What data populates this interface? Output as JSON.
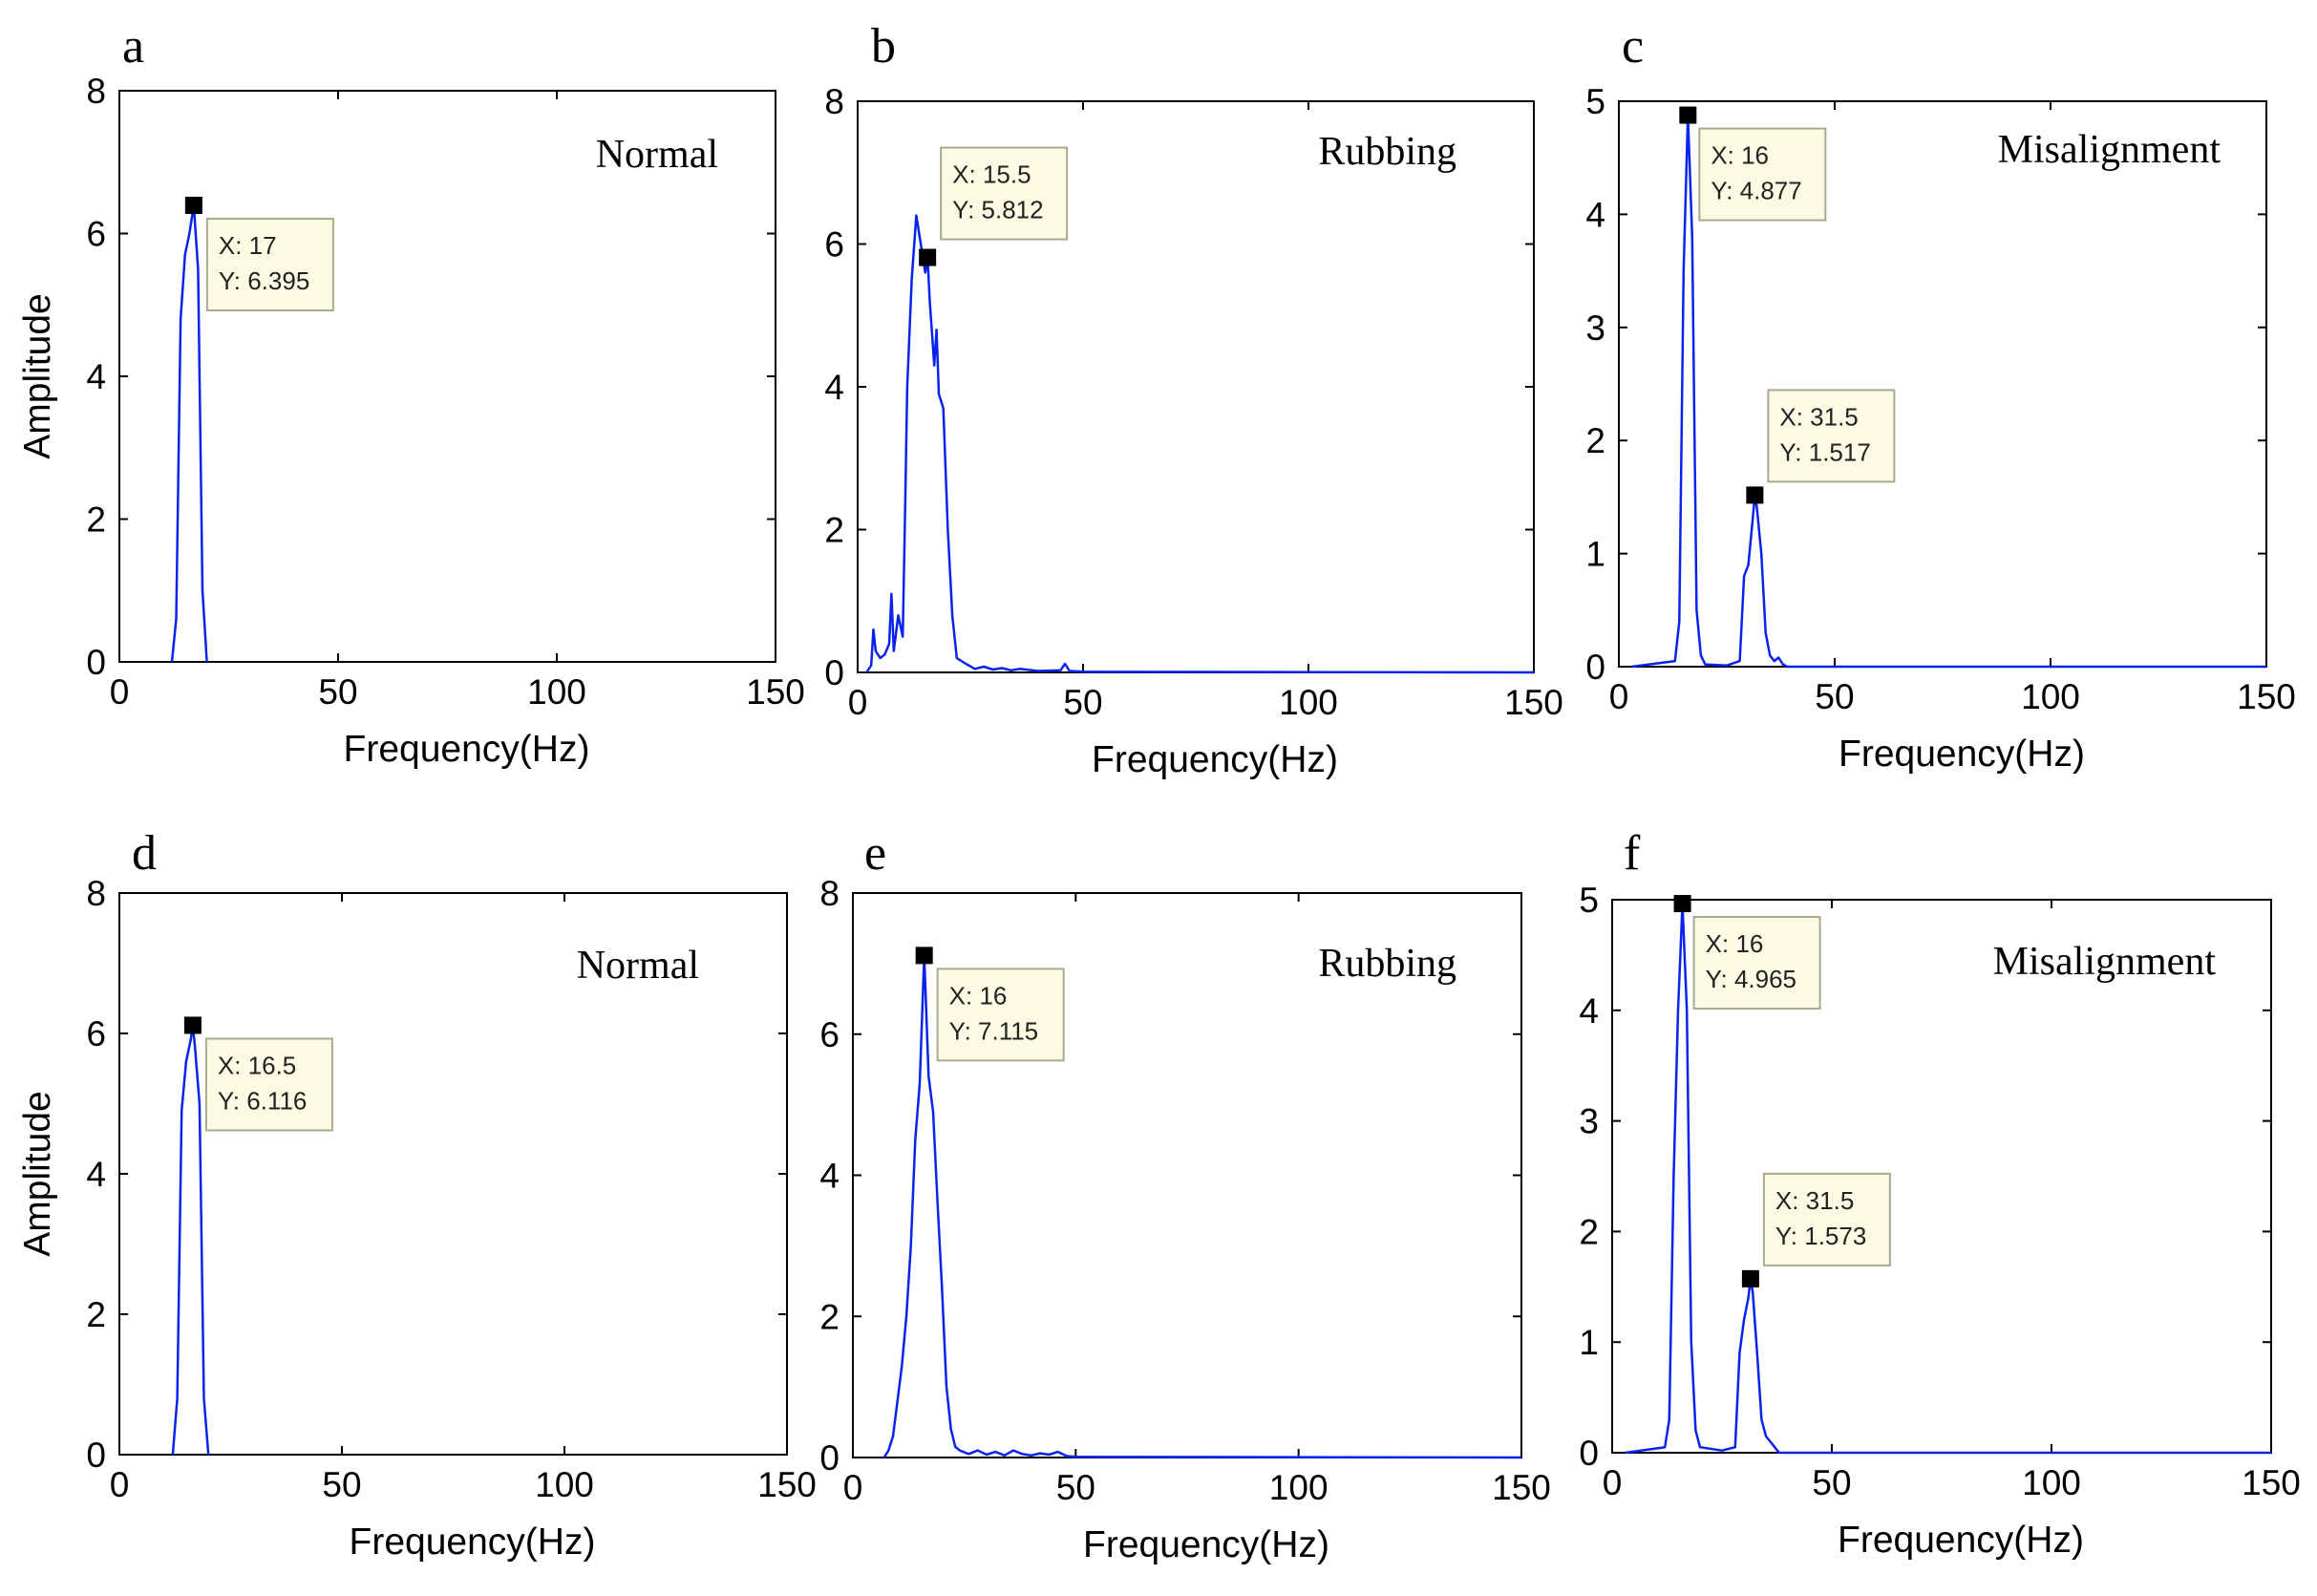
{
  "figure": {
    "xlabel": "Frequency(Hz)",
    "ylabel": "Amplitude"
  },
  "chart_data": [
    {
      "type": "line",
      "panel": "a",
      "label": "Normal",
      "xlabel": "Frequency(Hz)",
      "ylabel": "Amplitude",
      "xlim": [
        0,
        150
      ],
      "ylim": [
        0,
        8
      ],
      "xticks": [
        0,
        50,
        100,
        150
      ],
      "yticks": [
        0,
        2,
        4,
        6,
        8
      ],
      "series": [
        {
          "name": "spectrum",
          "x": [
            12,
            13,
            14,
            15,
            16,
            17,
            18,
            19,
            20
          ],
          "y": [
            0,
            0.6,
            4.8,
            5.7,
            6.0,
            6.395,
            5.5,
            1.0,
            0
          ]
        }
      ],
      "datatips": [
        {
          "x_text": "X: 17",
          "y_text": "Y: 6.395",
          "x": 17,
          "y": 6.395
        }
      ]
    },
    {
      "type": "line",
      "panel": "b",
      "label": "Rubbing",
      "xlabel": "Frequency(Hz)",
      "ylabel": "",
      "xlim": [
        0,
        150
      ],
      "ylim": [
        0,
        8
      ],
      "xticks": [
        0,
        50,
        100,
        150
      ],
      "yticks": [
        0,
        2,
        4,
        6,
        8
      ],
      "series": [
        {
          "name": "spectrum",
          "x": [
            2,
            3,
            3.5,
            4,
            5,
            6,
            7,
            7.5,
            8,
            9,
            10,
            10.5,
            11,
            12,
            13,
            14,
            15,
            15.5,
            16,
            17,
            17.5,
            18,
            19,
            20,
            21,
            22,
            24,
            26,
            28,
            30,
            32,
            34,
            36,
            40,
            45,
            46,
            47,
            50,
            150
          ],
          "y": [
            0,
            0.1,
            0.6,
            0.3,
            0.2,
            0.25,
            0.4,
            1.1,
            0.3,
            0.8,
            0.5,
            2.2,
            4.0,
            5.5,
            6.4,
            6.0,
            5.6,
            5.812,
            5.2,
            4.3,
            4.8,
            3.9,
            3.7,
            2.0,
            0.8,
            0.2,
            0.12,
            0.05,
            0.08,
            0.04,
            0.06,
            0.03,
            0.05,
            0.02,
            0.03,
            0.12,
            0.02,
            0.01,
            0
          ]
        }
      ],
      "datatips": [
        {
          "x_text": "X: 15.5",
          "y_text": "Y: 5.812",
          "x": 15.5,
          "y": 5.812
        }
      ]
    },
    {
      "type": "line",
      "panel": "c",
      "label": "Misalignment",
      "xlabel": "Frequency(Hz)",
      "ylabel": "",
      "xlim": [
        0,
        150
      ],
      "ylim": [
        0,
        5
      ],
      "xticks": [
        0,
        50,
        100,
        150
      ],
      "yticks": [
        0,
        1,
        2,
        3,
        4,
        5
      ],
      "series": [
        {
          "name": "spectrum",
          "x": [
            3,
            13,
            14,
            15,
            16,
            17,
            18,
            19,
            20,
            25,
            28,
            29,
            30,
            31,
            31.5,
            32,
            33,
            34,
            35,
            36,
            37,
            38,
            39,
            150
          ],
          "y": [
            0,
            0.05,
            0.4,
            3.5,
            4.877,
            3.8,
            0.5,
            0.1,
            0.02,
            0.01,
            0.05,
            0.8,
            0.9,
            1.3,
            1.517,
            1.4,
            1.0,
            0.3,
            0.1,
            0.05,
            0.08,
            0.02,
            0.0,
            0
          ]
        }
      ],
      "datatips": [
        {
          "x_text": "X: 16",
          "y_text": "Y: 4.877",
          "x": 16,
          "y": 4.877
        },
        {
          "x_text": "X: 31.5",
          "y_text": "Y: 1.517",
          "x": 31.5,
          "y": 1.517
        }
      ]
    },
    {
      "type": "line",
      "panel": "d",
      "label": "Normal",
      "xlabel": "Frequency(Hz)",
      "ylabel": "Amplitude",
      "xlim": [
        0,
        150
      ],
      "ylim": [
        0,
        8
      ],
      "xticks": [
        0,
        50,
        100,
        150
      ],
      "yticks": [
        0,
        2,
        4,
        6,
        8
      ],
      "series": [
        {
          "name": "spectrum",
          "x": [
            12,
            13,
            14,
            15,
            16,
            16.5,
            17,
            18,
            19,
            20
          ],
          "y": [
            0,
            0.8,
            4.9,
            5.6,
            5.9,
            6.116,
            5.8,
            5.0,
            0.8,
            0
          ]
        }
      ],
      "datatips": [
        {
          "x_text": "X: 16.5",
          "y_text": "Y: 6.116",
          "x": 16.5,
          "y": 6.116
        }
      ]
    },
    {
      "type": "line",
      "panel": "e",
      "label": "Rubbing",
      "xlabel": "Frequency(Hz)",
      "ylabel": "",
      "xlim": [
        0,
        150
      ],
      "ylim": [
        0,
        8
      ],
      "xticks": [
        0,
        50,
        100,
        150
      ],
      "yticks": [
        0,
        2,
        4,
        6,
        8
      ],
      "series": [
        {
          "name": "spectrum",
          "x": [
            7,
            8,
            9,
            10,
            11,
            12,
            13,
            14,
            15,
            16,
            17,
            18,
            19,
            20,
            21,
            22,
            23,
            24,
            26,
            28,
            30,
            32,
            34,
            36,
            38,
            40,
            42,
            44,
            46,
            48,
            50,
            150
          ],
          "y": [
            0,
            0.1,
            0.3,
            0.8,
            1.3,
            2.0,
            3.0,
            4.5,
            5.3,
            7.115,
            5.4,
            4.9,
            3.6,
            2.4,
            1.0,
            0.4,
            0.15,
            0.1,
            0.05,
            0.1,
            0.04,
            0.08,
            0.03,
            0.1,
            0.05,
            0.03,
            0.06,
            0.04,
            0.08,
            0.02,
            0.01,
            0
          ]
        }
      ],
      "datatips": [
        {
          "x_text": "X: 16",
          "y_text": "Y: 7.115",
          "x": 16,
          "y": 7.115
        }
      ]
    },
    {
      "type": "line",
      "panel": "f",
      "label": "Misalignment",
      "xlabel": "Frequency(Hz)",
      "ylabel": "",
      "xlim": [
        0,
        150
      ],
      "ylim": [
        0,
        5
      ],
      "xticks": [
        0,
        50,
        100,
        150
      ],
      "yticks": [
        0,
        1,
        2,
        3,
        4,
        5
      ],
      "series": [
        {
          "name": "spectrum",
          "x": [
            3,
            12,
            13,
            14,
            15,
            16,
            17,
            18,
            19,
            20,
            25,
            28,
            29,
            30,
            31,
            31.5,
            32,
            33,
            34,
            35,
            36,
            37,
            38,
            150
          ],
          "y": [
            0,
            0.05,
            0.3,
            2.5,
            4.0,
            4.965,
            4.0,
            1.0,
            0.2,
            0.05,
            0.02,
            0.05,
            0.9,
            1.2,
            1.4,
            1.573,
            1.45,
            0.9,
            0.3,
            0.15,
            0.1,
            0.05,
            0.0,
            0
          ]
        }
      ],
      "datatips": [
        {
          "x_text": "X: 16",
          "y_text": "Y: 4.965",
          "x": 16,
          "y": 4.965
        },
        {
          "x_text": "X: 31.5",
          "y_text": "Y: 1.573",
          "x": 31.5,
          "y": 1.573
        }
      ]
    }
  ]
}
